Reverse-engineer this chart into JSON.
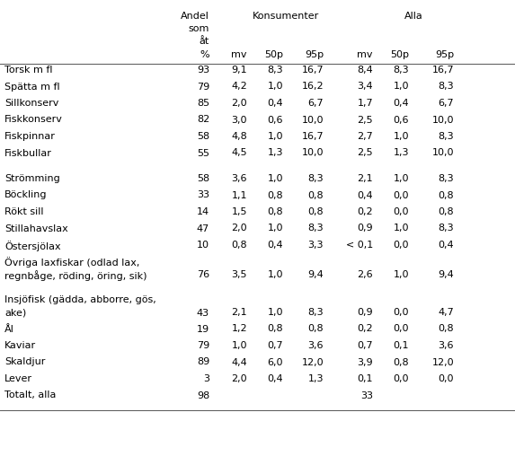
{
  "rows": [
    {
      "label": "Torsk m fl",
      "andel": "93",
      "k_mv": "9,1",
      "k_50p": "8,3",
      "k_95p": "16,7",
      "a_mv": "8,4",
      "a_50p": "8,3",
      "a_95p": "16,7",
      "blank": false,
      "multiline": false
    },
    {
      "label": "Spätta m fl",
      "andel": "79",
      "k_mv": "4,2",
      "k_50p": "1,0",
      "k_95p": "16,2",
      "a_mv": "3,4",
      "a_50p": "1,0",
      "a_95p": "8,3",
      "blank": false,
      "multiline": false
    },
    {
      "label": "Sillkonserv",
      "andel": "85",
      "k_mv": "2,0",
      "k_50p": "0,4",
      "k_95p": "6,7",
      "a_mv": "1,7",
      "a_50p": "0,4",
      "a_95p": "6,7",
      "blank": false,
      "multiline": false
    },
    {
      "label": "Fiskkonserv",
      "andel": "82",
      "k_mv": "3,0",
      "k_50p": "0,6",
      "k_95p": "10,0",
      "a_mv": "2,5",
      "a_50p": "0,6",
      "a_95p": "10,0",
      "blank": false,
      "multiline": false
    },
    {
      "label": "Fiskpinnar",
      "andel": "58",
      "k_mv": "4,8",
      "k_50p": "1,0",
      "k_95p": "16,7",
      "a_mv": "2,7",
      "a_50p": "1,0",
      "a_95p": "8,3",
      "blank": false,
      "multiline": false
    },
    {
      "label": "Fiskbullar",
      "andel": "55",
      "k_mv": "4,5",
      "k_50p": "1,3",
      "k_95p": "10,0",
      "a_mv": "2,5",
      "a_50p": "1,3",
      "a_95p": "10,0",
      "blank": false,
      "multiline": false
    },
    {
      "label": "",
      "andel": "",
      "k_mv": "",
      "k_50p": "",
      "k_95p": "",
      "a_mv": "",
      "a_50p": "",
      "a_95p": "",
      "blank": true,
      "multiline": false
    },
    {
      "label": "Strömming",
      "andel": "58",
      "k_mv": "3,6",
      "k_50p": "1,0",
      "k_95p": "8,3",
      "a_mv": "2,1",
      "a_50p": "1,0",
      "a_95p": "8,3",
      "blank": false,
      "multiline": false
    },
    {
      "label": "Böckling",
      "andel": "33",
      "k_mv": "1,1",
      "k_50p": "0,8",
      "k_95p": "0,8",
      "a_mv": "0,4",
      "a_50p": "0,0",
      "a_95p": "0,8",
      "blank": false,
      "multiline": false
    },
    {
      "label": "Rökt sill",
      "andel": "14",
      "k_mv": "1,5",
      "k_50p": "0,8",
      "k_95p": "0,8",
      "a_mv": "0,2",
      "a_50p": "0,0",
      "a_95p": "0,8",
      "blank": false,
      "multiline": false
    },
    {
      "label": "Stillahavslax",
      "andel": "47",
      "k_mv": "2,0",
      "k_50p": "1,0",
      "k_95p": "8,3",
      "a_mv": "0,9",
      "a_50p": "1,0",
      "a_95p": "8,3",
      "blank": false,
      "multiline": false
    },
    {
      "label": "Östersjölax",
      "andel": "10",
      "k_mv": "0,8",
      "k_50p": "0,4",
      "k_95p": "3,3",
      "a_mv": "< 0,1",
      "a_50p": "0,0",
      "a_95p": "0,4",
      "blank": false,
      "multiline": false
    },
    {
      "label": "Övriga laxfiskar (odlad lax,\nregnbåge, röding, öring, sik)",
      "andel": "76",
      "k_mv": "3,5",
      "k_50p": "1,0",
      "k_95p": "9,4",
      "a_mv": "2,6",
      "a_50p": "1,0",
      "a_95p": "9,4",
      "blank": false,
      "multiline": true
    },
    {
      "label": "",
      "andel": "",
      "k_mv": "",
      "k_50p": "",
      "k_95p": "",
      "a_mv": "",
      "a_50p": "",
      "a_95p": "",
      "blank": true,
      "multiline": false
    },
    {
      "label": "Insjöfisk (gädda, abborre, gös,\nake)",
      "andel": "43",
      "k_mv": "2,1",
      "k_50p": "1,0",
      "k_95p": "8,3",
      "a_mv": "0,9",
      "a_50p": "0,0",
      "a_95p": "4,7",
      "blank": false,
      "multiline": true
    },
    {
      "label": "Ål",
      "andel": "19",
      "k_mv": "1,2",
      "k_50p": "0,8",
      "k_95p": "0,8",
      "a_mv": "0,2",
      "a_50p": "0,0",
      "a_95p": "0,8",
      "blank": false,
      "multiline": false
    },
    {
      "label": "Kaviar",
      "andel": "79",
      "k_mv": "1,0",
      "k_50p": "0,7",
      "k_95p": "3,6",
      "a_mv": "0,7",
      "a_50p": "0,1",
      "a_95p": "3,6",
      "blank": false,
      "multiline": false
    },
    {
      "label": "Skaldjur",
      "andel": "89",
      "k_mv": "4,4",
      "k_50p": "6,0",
      "k_95p": "12,0",
      "a_mv": "3,9",
      "a_50p": "0,8",
      "a_95p": "12,0",
      "blank": false,
      "multiline": false
    },
    {
      "label": "Lever",
      "andel": "3",
      "k_mv": "2,0",
      "k_50p": "0,4",
      "k_95p": "1,3",
      "a_mv": "0,1",
      "a_50p": "0,0",
      "a_95p": "0,0",
      "blank": false,
      "multiline": false
    },
    {
      "label": "Totalt, alla",
      "andel": "98",
      "k_mv": "",
      "k_50p": "",
      "k_95p": "",
      "a_mv": "33",
      "a_50p": "",
      "a_95p": "",
      "blank": false,
      "multiline": false
    }
  ],
  "figsize": [
    5.73,
    5.18
  ],
  "dpi": 100,
  "fontsize": 8.0,
  "bg_color": "#ffffff",
  "text_color": "#000000",
  "line_color": "#555555"
}
